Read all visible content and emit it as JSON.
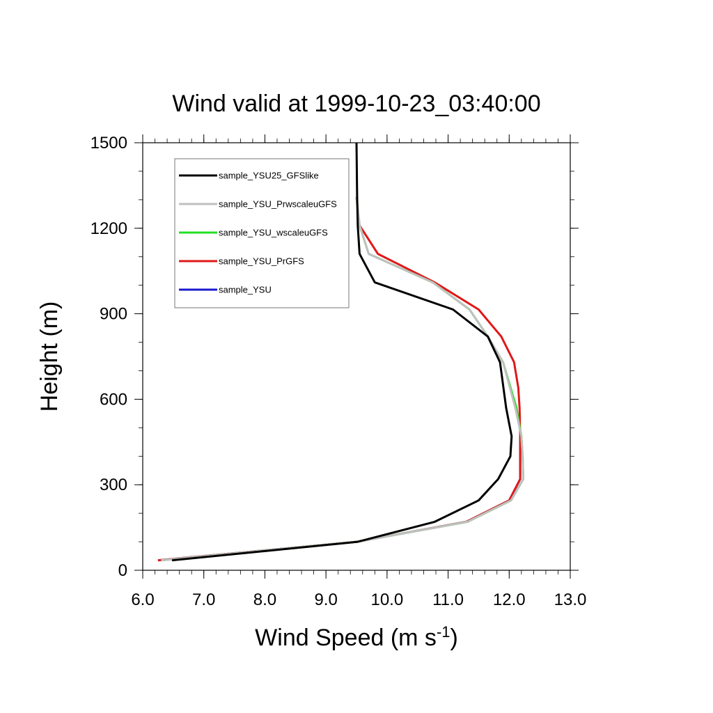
{
  "chart_data": {
    "type": "line",
    "title": "Wind valid at 1999-10-23_03:40:00",
    "xlabel": {
      "main": "Wind Speed (m s",
      "superscript": "-1",
      "close": ")"
    },
    "ylabel": "Height (m)",
    "xlim": [
      6.0,
      13.0
    ],
    "ylim": [
      0,
      1500
    ],
    "x_ticks": [
      6.0,
      7.0,
      8.0,
      9.0,
      10.0,
      11.0,
      12.0,
      13.0
    ],
    "x_tick_labels": [
      "6.0",
      "7.0",
      "8.0",
      "9.0",
      "10.0",
      "11.0",
      "12.0",
      "13.0"
    ],
    "y_ticks": [
      0,
      300,
      600,
      900,
      1200,
      1500
    ],
    "y_tick_labels": [
      "0",
      "300",
      "600",
      "900",
      "1200",
      "1500"
    ],
    "grid": false,
    "legend_position": "top-left",
    "series": [
      {
        "name": "sample_YSU25_GFSlike",
        "color": "#000000",
        "x": [
          6.48,
          9.52,
          10.78,
          11.5,
          11.82,
          12.02,
          12.04,
          11.95,
          11.85,
          11.65,
          11.08,
          9.8,
          9.55,
          9.52,
          9.51,
          9.5
        ],
        "y": [
          35,
          100,
          170,
          245,
          320,
          400,
          470,
          570,
          730,
          820,
          915,
          1010,
          1110,
          1210,
          1310,
          1500
        ]
      },
      {
        "name": "sample_YSU_PrwscaleuGFS",
        "color": "#c0c0c0",
        "x": [
          6.3,
          9.5,
          11.32,
          12.03,
          12.23,
          12.22,
          12.2,
          12.1,
          11.9,
          11.65,
          11.35,
          10.75,
          9.7,
          9.55,
          9.5
        ],
        "y": [
          35,
          100,
          170,
          245,
          320,
          400,
          470,
          570,
          730,
          820,
          915,
          1010,
          1110,
          1210,
          1310
        ]
      },
      {
        "name": "sample_YSU_wscaleuGFS",
        "color": "#22e022",
        "x": [
          6.3,
          9.5,
          11.32,
          12.03,
          12.23,
          12.22,
          12.2,
          12.12,
          11.9,
          11.65,
          11.35,
          10.75,
          9.7,
          9.55,
          9.5
        ],
        "y": [
          35,
          100,
          170,
          245,
          320,
          400,
          470,
          570,
          730,
          820,
          915,
          1010,
          1110,
          1210,
          1310
        ]
      },
      {
        "name": "sample_YSU_PrGFS",
        "color": "#e01818",
        "x": [
          6.25,
          9.5,
          11.3,
          12.0,
          12.18,
          12.18,
          12.18,
          12.17,
          12.15,
          12.08,
          11.87,
          11.5,
          10.78,
          9.85,
          9.55,
          9.5
        ],
        "y": [
          35,
          100,
          170,
          245,
          320,
          400,
          470,
          570,
          640,
          730,
          820,
          915,
          1010,
          1110,
          1210,
          1310
        ]
      },
      {
        "name": "sample_YSU",
        "color": "#1a1ad0",
        "x": [
          6.25,
          9.5,
          11.3,
          12.0,
          12.18,
          12.18,
          12.18
        ],
        "y": [
          35,
          100,
          170,
          245,
          320,
          400,
          470
        ]
      }
    ]
  }
}
